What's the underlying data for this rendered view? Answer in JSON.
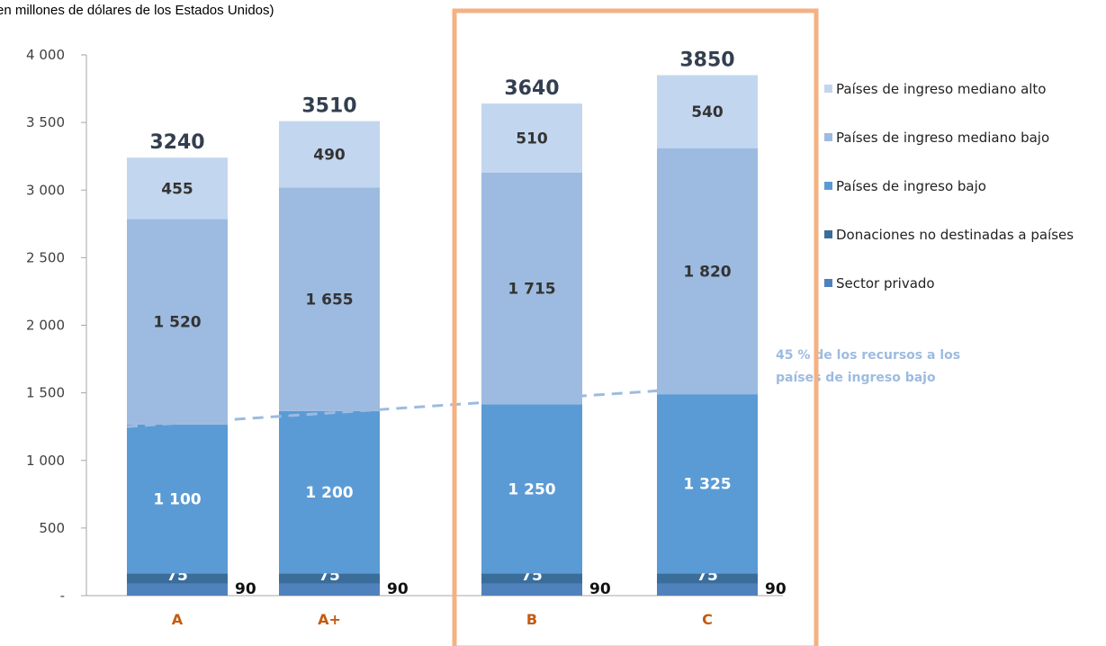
{
  "chart_data": {
    "type": "bar",
    "stacked": true,
    "subtitle": "en millones de dólares de los Estados Unidos)",
    "categories": [
      "A",
      "A+",
      "B",
      "C"
    ],
    "ylim": [
      0,
      4000
    ],
    "yticks": [
      0,
      500,
      1000,
      1500,
      2000,
      2500,
      3000,
      3500,
      4000
    ],
    "ytick_labels": [
      "-",
      "500",
      "1 000",
      "1 500",
      "2 000",
      "2 500",
      "3 000",
      "3 500",
      "4 000"
    ],
    "series": [
      {
        "name": "Sector privado",
        "values": [
          90,
          90,
          90,
          90
        ],
        "labels": [
          "90",
          "90",
          "90",
          "90"
        ],
        "color": "#4f81bd"
      },
      {
        "name": "Donaciones no destinadas a países",
        "values": [
          75,
          75,
          75,
          75
        ],
        "labels": [
          "75",
          "75",
          "75",
          "75"
        ],
        "color": "#3a6d9a"
      },
      {
        "name": "Países de ingreso bajo",
        "values": [
          1100,
          1200,
          1250,
          1325
        ],
        "labels": [
          "1 100",
          "1 200",
          "1 250",
          "1 325"
        ],
        "color": "#5b9bd5"
      },
      {
        "name": "Países de ingreso mediano bajo",
        "values": [
          1520,
          1655,
          1715,
          1820
        ],
        "labels": [
          "1 520",
          "1 655",
          "1 715",
          "1 820"
        ],
        "color": "#9dbbe0"
      },
      {
        "name": "Países de ingreso mediano alto",
        "values": [
          455,
          490,
          510,
          540
        ],
        "labels": [
          "455",
          "490",
          "510",
          "540"
        ],
        "color": "#c2d6ef"
      }
    ],
    "totals": [
      3240,
      3510,
      3640,
      3850
    ],
    "legend_order": [
      "Países de ingreso mediano alto",
      "Países de ingreso mediano bajo",
      "Países de ingreso bajo",
      "Donaciones no destinadas a países",
      "Sector privado"
    ],
    "legend_position": "right",
    "annotation": {
      "lines": [
        "45 % de los recursos a los",
        "países de ingreso bajo"
      ],
      "color": "#9dbbe0",
      "line_start": {
        "category": "A",
        "value": 1250
      },
      "line_end": {
        "category": "C",
        "value": 1565
      }
    },
    "highlight": {
      "categories": [
        "B",
        "C"
      ],
      "color": "#f4b183"
    },
    "category_label_color": "#c55a11",
    "grid": false
  }
}
